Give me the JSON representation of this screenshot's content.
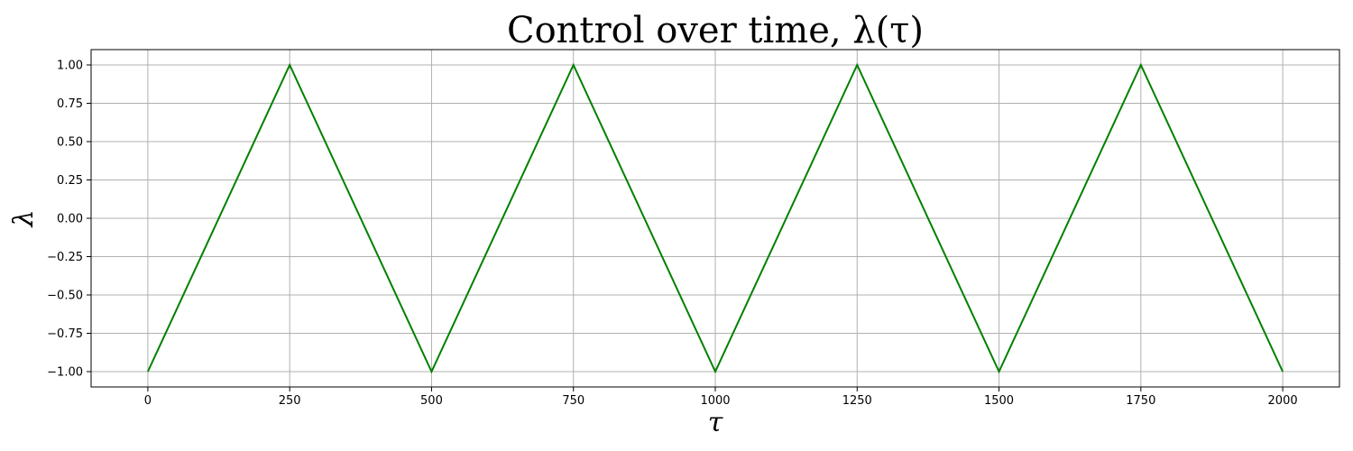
{
  "chart_data": {
    "type": "line",
    "title": "Control over time, λ(τ)",
    "xlabel": "τ",
    "ylabel": "λ",
    "xlim": [
      -100,
      2100
    ],
    "ylim": [
      -1.1,
      1.1
    ],
    "grid": true,
    "x_ticks": [
      0,
      250,
      500,
      750,
      1000,
      1250,
      1500,
      1750,
      2000
    ],
    "x_tick_labels": [
      "0",
      "250",
      "500",
      "750",
      "1000",
      "1250",
      "1500",
      "1750",
      "2000"
    ],
    "y_ticks": [
      -1.0,
      -0.75,
      -0.5,
      -0.25,
      0.0,
      0.25,
      0.5,
      0.75,
      1.0
    ],
    "y_tick_labels": [
      "−1.00",
      "−0.75",
      "−0.50",
      "−0.25",
      "0.00",
      "0.25",
      "0.50",
      "0.75",
      "1.00"
    ],
    "series": [
      {
        "color": "#008000",
        "x": [
          0,
          250,
          500,
          750,
          1000,
          1250,
          1500,
          1750,
          2000
        ],
        "y": [
          -1,
          1,
          -1,
          1,
          -1,
          1,
          -1,
          1,
          -1
        ]
      }
    ]
  }
}
